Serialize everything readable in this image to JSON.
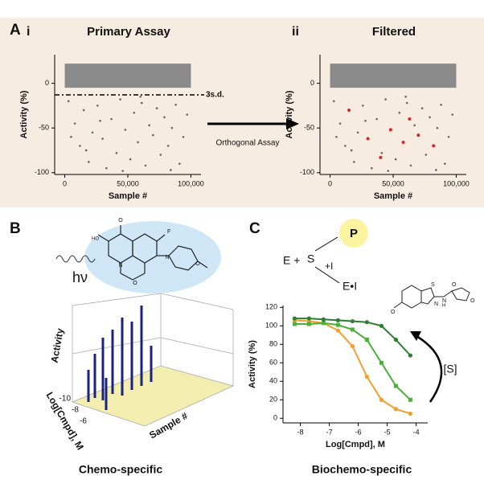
{
  "panel_a": {
    "letter": "A",
    "arrow_label": "Orthogonal Assay"
  },
  "panel_b": {
    "letter": "B",
    "light": "hν",
    "z_label": "Activity",
    "depth_label": "Log[Cmpd], M",
    "x_label": "Sample #",
    "depth_ticks": [
      -10,
      -8,
      -6
    ],
    "caption": "Chemo-specific",
    "atoms": [
      "HO",
      "O",
      "O",
      "F",
      "N",
      "N",
      "O"
    ]
  },
  "panel_c": {
    "letter": "C",
    "enzyme": "E +",
    "substrate": "S",
    "product": "P",
    "inhibitor": "+I",
    "complex": "E•I",
    "substrate_arrow": "[S]",
    "caption": "Biochemo-specific",
    "atoms": [
      "O",
      "N",
      "S",
      "N",
      "H",
      "O",
      "O"
    ]
  },
  "chart_data": [
    {
      "type": "scatter",
      "panel_label": "i",
      "title": "Primary Assay",
      "xlabel": "Sample #",
      "ylabel": "Activity (%)",
      "color": "#666666",
      "xlim": [
        -8000,
        108000
      ],
      "ylim": [
        -102,
        32
      ],
      "xticks": [
        0,
        {
          "value": 50000,
          "label": "50,000"
        },
        {
          "value": 100000,
          "label": "100,000"
        }
      ],
      "yticks": [
        0,
        -50,
        -100
      ],
      "dense_band": [
        -5,
        22
      ],
      "threshold": {
        "value": -13,
        "label": "3s.d."
      },
      "x": [
        3000,
        8000,
        12000,
        15000,
        19000,
        22000,
        26000,
        30000,
        33000,
        37000,
        41000,
        44000,
        48000,
        52000,
        55000,
        58000,
        61000,
        64000,
        67000,
        70000,
        73000,
        76000,
        79000,
        82000,
        85000,
        88000,
        91000,
        94000,
        97000,
        5000,
        17000,
        28000,
        46000,
        60000,
        84000
      ],
      "y": [
        -20,
        -45,
        -70,
        -30,
        -88,
        -55,
        -25,
        -62,
        -95,
        -40,
        -78,
        -18,
        -52,
        -85,
        -33,
        -66,
        -22,
        -92,
        -47,
        -58,
        -28,
        -80,
        -38,
        -70,
        -50,
        -24,
        -90,
        -60,
        -35,
        -60,
        -75,
        -42,
        -98,
        -15,
        -97
      ]
    },
    {
      "type": "scatter",
      "panel_label": "ii",
      "title": "Filtered",
      "xlabel": "Sample #",
      "ylabel": "Activity (%)",
      "color": "#666666",
      "xlim": [
        -8000,
        108000
      ],
      "ylim": [
        -102,
        32
      ],
      "xticks": [
        0,
        {
          "value": 50000,
          "label": "50,000"
        },
        {
          "value": 100000,
          "label": "100,000"
        }
      ],
      "yticks": [
        0,
        -50,
        -100
      ],
      "dense_band": [
        -5,
        22
      ],
      "x": [
        3000,
        8000,
        12000,
        15000,
        19000,
        22000,
        26000,
        30000,
        33000,
        37000,
        41000,
        44000,
        48000,
        52000,
        55000,
        58000,
        61000,
        64000,
        67000,
        70000,
        73000,
        76000,
        79000,
        82000,
        85000,
        88000,
        91000,
        94000,
        97000,
        5000,
        17000,
        28000,
        46000,
        60000,
        84000
      ],
      "y": [
        -20,
        -45,
        -70,
        -30,
        -88,
        -55,
        -25,
        -62,
        -95,
        -40,
        -78,
        -18,
        -52,
        -85,
        -33,
        -66,
        -22,
        -92,
        -47,
        -58,
        -28,
        -80,
        -38,
        -70,
        -50,
        -24,
        -90,
        -60,
        -35,
        -60,
        -75,
        -42,
        -98,
        -15,
        -97
      ],
      "highlight": {
        "color": "#d62728",
        "x": [
          15000,
          30000,
          48000,
          58000,
          70000,
          82000,
          40000,
          63000
        ],
        "y": [
          -30,
          -62,
          -52,
          -66,
          -58,
          -70,
          -83,
          -40
        ]
      }
    },
    {
      "type": "line",
      "xlabel": "Log[Cmpd], M",
      "ylabel": "Activity (%)",
      "xlim": [
        -8.6,
        -3.6
      ],
      "ylim": [
        -5,
        122
      ],
      "xticks": [
        -8,
        -7,
        -6,
        -5,
        -4
      ],
      "yticks": [
        0,
        20,
        40,
        60,
        80,
        100,
        120
      ],
      "x": [
        -8.2,
        -7.7,
        -7.2,
        -6.7,
        -6.2,
        -5.7,
        -5.2,
        -4.7,
        -4.2
      ],
      "series": [
        {
          "color": "#f0a030",
          "values": [
            106,
            105,
            103,
            95,
            78,
            45,
            20,
            10,
            5
          ]
        },
        {
          "color": "#4caf3a",
          "values": [
            102,
            102,
            103,
            101,
            96,
            85,
            60,
            35,
            20
          ]
        },
        {
          "color": "#2e7d32",
          "values": [
            108,
            108,
            107,
            106,
            105,
            104,
            100,
            85,
            68
          ]
        }
      ]
    }
  ]
}
